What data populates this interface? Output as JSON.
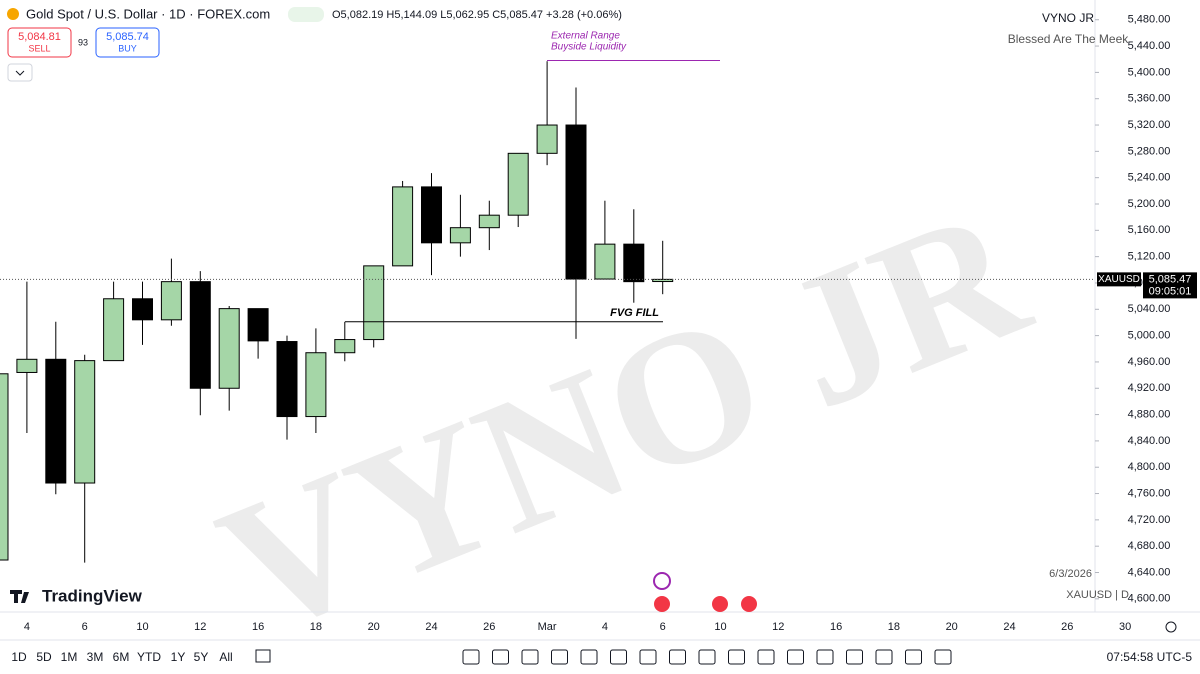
{
  "header": {
    "symbol": "Gold Spot / U.S. Dollar · 1D · FOREX.com",
    "ohlc": "O5,082.19 H5,144.09 L5,062.95 C5,085.47 +3.28 (+0.06%)",
    "sell_price": "5,084.81",
    "sell_label": "SELL",
    "spread": "93",
    "buy_price": "5,085.74",
    "buy_label": "BUY"
  },
  "branding": {
    "author": "VYNO JR",
    "tagline": "Blessed Are The Meek",
    "watermark": "VYNO JR",
    "logo": "TradingView",
    "date": "6/3/2026",
    "symbol_interval": "XAUUSD | D"
  },
  "chart_data": {
    "type": "candlestick",
    "categories": [
      null,
      "4",
      null,
      "6",
      null,
      "10",
      null,
      "12",
      null,
      "16",
      null,
      "18",
      null,
      "20",
      null,
      "24",
      null,
      "26",
      null,
      "Mar",
      null,
      "4",
      null,
      "6",
      null,
      "10",
      null,
      "12",
      null,
      "16",
      null,
      "18",
      null,
      "20",
      null,
      "24",
      null,
      "26",
      null,
      "30"
    ],
    "open": [
      4659,
      4944,
      4964,
      4776,
      4962,
      5056,
      5024,
      5082,
      4920,
      5041,
      4991,
      4877,
      4974,
      4994,
      5106,
      5226,
      5141,
      5164,
      5183,
      5277,
      5320,
      5086,
      5139,
      5082.19,
      null,
      null,
      null,
      null,
      null,
      null,
      null,
      null,
      null,
      null,
      null,
      null,
      null,
      null,
      null,
      null
    ],
    "high": [
      4942,
      5082,
      5021,
      4971,
      5082,
      5082,
      5117,
      5098,
      5045,
      5041,
      5000,
      5011,
      5021,
      5106,
      5235,
      5247,
      5214,
      5205,
      5277,
      5417,
      5377,
      5205,
      5192,
      5144.09,
      null,
      null,
      null,
      null,
      null,
      null,
      null,
      null,
      null,
      null,
      null,
      null,
      null,
      null,
      null,
      null
    ],
    "low": [
      4659,
      4852,
      4759,
      4655,
      4962,
      4986,
      5015,
      4879,
      4886,
      4965,
      4842,
      4852,
      4961,
      4982,
      5106,
      5092,
      5120,
      5130,
      5165,
      5259,
      4995,
      5086,
      5050,
      5062.95,
      null,
      null,
      null,
      null,
      null,
      null,
      null,
      null,
      null,
      null,
      null,
      null,
      null,
      null,
      null,
      null
    ],
    "close": [
      4942,
      4964,
      4776,
      4962,
      5056,
      5024,
      5082,
      4920,
      5041,
      4992,
      4877,
      4974,
      4994,
      5106,
      5226,
      5141,
      5164,
      5183,
      5277,
      5320,
      5086,
      5139,
      5082,
      5085.47,
      null,
      null,
      null,
      null,
      null,
      null,
      null,
      null,
      null,
      null,
      null,
      null,
      null,
      null,
      null,
      null
    ],
    "up_color": "#a5d6a7",
    "down_color": "#000000",
    "ylim": [
      4580,
      5510
    ],
    "yticks": [
      {
        "value": 4600,
        "label": "4,600.00"
      },
      {
        "value": 4640,
        "label": "4,640.00"
      },
      {
        "value": 4680,
        "label": "4,680.00"
      },
      {
        "value": 4720,
        "label": "4,720.00"
      },
      {
        "value": 4760,
        "label": "4,760.00"
      },
      {
        "value": 4800,
        "label": "4,800.00"
      },
      {
        "value": 4840,
        "label": "4,840.00"
      },
      {
        "value": 4880,
        "label": "4,880.00"
      },
      {
        "value": 4920,
        "label": "4,920.00"
      },
      {
        "value": 4960,
        "label": "4,960.00"
      },
      {
        "value": 5000,
        "label": "5,000.00"
      },
      {
        "value": 5040,
        "label": "5,040.00"
      },
      {
        "value": 5080,
        "label": "5,080.00"
      },
      {
        "value": 5120,
        "label": "5,120.00"
      },
      {
        "value": 5160,
        "label": "5,160.00"
      },
      {
        "value": 5200,
        "label": "5,200.00"
      },
      {
        "value": 5240,
        "label": "5,240.00"
      },
      {
        "value": 5280,
        "label": "5,280.00"
      },
      {
        "value": 5320,
        "label": "5,320.00"
      },
      {
        "value": 5360,
        "label": "5,360.00"
      },
      {
        "value": 5400,
        "label": "5,400.00"
      },
      {
        "value": 5440,
        "label": "5,440.00"
      },
      {
        "value": 5480,
        "label": "5,480.00"
      }
    ],
    "last_price": {
      "value": 5085.47,
      "label": "5,085.47"
    },
    "last_symbol": "XAUUSD",
    "countdown": "09:05:01",
    "annotations": [
      {
        "lines": [
          "External Range",
          "Buyside Liquidity"
        ],
        "value": 5418,
        "color": "#9c27b0"
      },
      {
        "lines": [
          "FVG FILL"
        ],
        "value": 5021,
        "color": "#000000"
      }
    ]
  },
  "toolbar": {
    "periods": [
      "1D",
      "5D",
      "1M",
      "3M",
      "6M",
      "YTD",
      "1Y",
      "5Y",
      "All"
    ],
    "time": "07:54:58 UTC-5"
  }
}
